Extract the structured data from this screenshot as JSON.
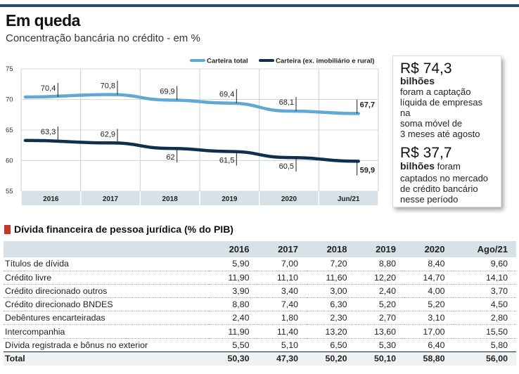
{
  "title": "Em queda",
  "subtitle": "Concentração bancária no crédito - em %",
  "chart_data": {
    "type": "line",
    "categories": [
      "2016",
      "2017",
      "2018",
      "2019",
      "2020",
      "Jun/21"
    ],
    "ylim": [
      55,
      75
    ],
    "yticks": [
      "75",
      "70",
      "65",
      "60",
      "55"
    ],
    "legend_position": "top-right",
    "series": [
      {
        "name": "Carteira total",
        "color": "#5fa9d3",
        "values": [
          70.4,
          70.8,
          69.9,
          69.4,
          68.1,
          67.7
        ],
        "labels": [
          "70,4",
          "70,8",
          "69,9",
          "69,4",
          "68,1",
          "67,7"
        ]
      },
      {
        "name": "Carteira (ex. imobiliário e rural)",
        "color": "#0f2f4a",
        "values": [
          63.3,
          62.9,
          62.0,
          61.5,
          60.5,
          59.9
        ],
        "labels": [
          "63,3",
          "62,9",
          "62",
          "61,5",
          "60,5",
          "59,9"
        ]
      }
    ]
  },
  "sidebar": {
    "block1": {
      "amount": "R$ 74,3",
      "unit": "bilhões",
      "text": [
        "foram a captação",
        "líquida de empresas na",
        "soma móvel de",
        "3 meses até agosto"
      ]
    },
    "block2": {
      "amount": "R$ 37,7",
      "unit": "bilhões",
      "unit_suffix": " foram",
      "text": [
        "captados no mercado",
        "de crédito bancário",
        "nesse período"
      ]
    }
  },
  "table": {
    "heading": "Dívida financeira de pessoa jurídica (% do PIB)",
    "columns": [
      "",
      "2016",
      "2017",
      "2018",
      "2019",
      "2020",
      "Ago/21"
    ],
    "rows": [
      [
        "Títulos de dívida",
        "5,90",
        "7,00",
        "7,20",
        "8,80",
        "8,40",
        "9,60"
      ],
      [
        "Crédito livre",
        "11,90",
        "11,10",
        "11,60",
        "12,20",
        "14,70",
        "14,10"
      ],
      [
        "Crédito direcionado  outros",
        "3,90",
        "3,40",
        "3,00",
        "2,40",
        "4,00",
        "3,70"
      ],
      [
        "Crédito direcionado BNDES",
        "8,80",
        "7,40",
        "6,30",
        "5,20",
        "5,20",
        "4,50"
      ],
      [
        "Debêntures encarteiradas",
        "2,40",
        "1,80",
        "2,30",
        "2,70",
        "3,10",
        "2,80"
      ],
      [
        "Intercompanhia",
        "11,90",
        "11,40",
        "13,20",
        "13,60",
        "17,00",
        "15,50"
      ],
      [
        "Dívida registrada e bônus no exterior",
        "5,50",
        "5,10",
        "6,50",
        "5,30",
        "6,40",
        "5,80"
      ]
    ],
    "total": [
      "Total",
      "50,30",
      "47,30",
      "50,20",
      "50,10",
      "58,80",
      "56,00"
    ]
  }
}
